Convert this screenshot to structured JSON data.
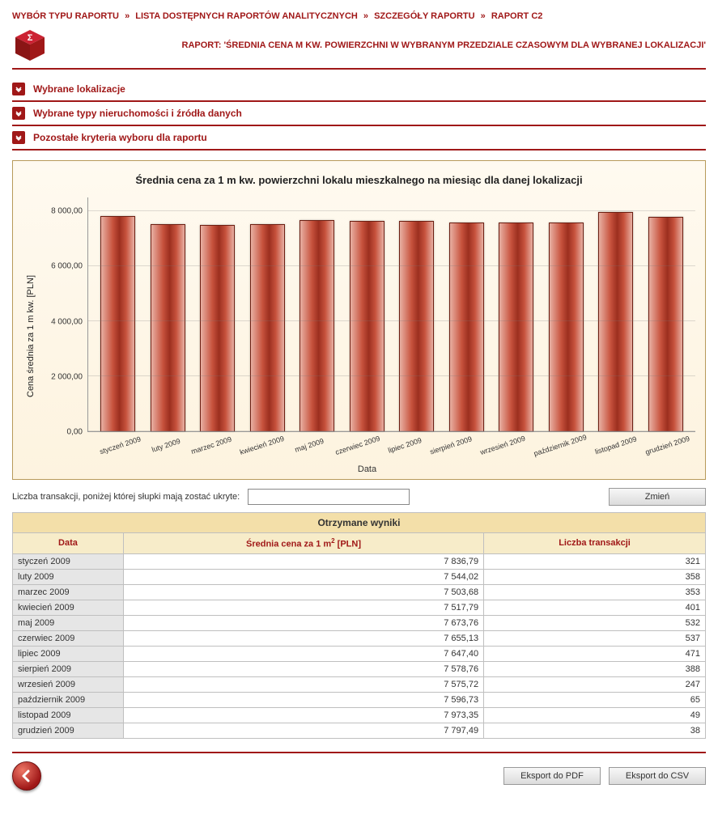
{
  "breadcrumb": {
    "items": [
      "WYBÓR TYPU RAPORTU",
      "LISTA DOSTĘPNYCH RAPORTÓW ANALITYCZNYCH",
      "SZCZEGÓŁY RAPORTU",
      "RAPORT C2"
    ],
    "separator": "»"
  },
  "header": {
    "report_label": "RAPORT: 'ŚREDNIA CENA M KW. POWIERZCHNI W WYBRANYM PRZEDZIALE CZASOWYM DLA WYBRANEJ LOKALIZACJI'"
  },
  "sections": {
    "s1": "Wybrane lokalizacje",
    "s2": "Wybrane typy nieruchomości i źródła danych",
    "s3": "Pozostałe kryteria wyboru dla raportu"
  },
  "chart": {
    "type": "bar",
    "title": "Średnia cena  za 1 m kw. powierzchni lokalu mieszkalnego na miesiąc dla danej lokalizacji",
    "ylabel": "Cena średnia za 1 m kw. [PLN]",
    "xlabel": "Data",
    "ylim": [
      0,
      8500
    ],
    "yticks": [
      {
        "v": 0,
        "label": "0,00"
      },
      {
        "v": 2000,
        "label": "2 000,00"
      },
      {
        "v": 4000,
        "label": "4 000,00"
      },
      {
        "v": 6000,
        "label": "6 000,00"
      },
      {
        "v": 8000,
        "label": "8 000,00"
      }
    ],
    "categories": [
      "styczeń 2009",
      "luty 2009",
      "marzec 2009",
      "kwiecień 2009",
      "maj 2009",
      "czerwiec 2009",
      "lipiec 2009",
      "sierpień 2009",
      "wrzesień 2009",
      "październik 2009",
      "listopad 2009",
      "grudzień 2009"
    ],
    "values": [
      7836.79,
      7544.02,
      7503.68,
      7517.79,
      7673.76,
      7655.13,
      7647.4,
      7578.76,
      7575.72,
      7596.73,
      7973.35,
      7797.49
    ],
    "bar_gradient": [
      "#e8b0a3",
      "#c7523d",
      "#9c2f1f",
      "#c7523d",
      "#e8b0a3"
    ],
    "bar_border": "#6d1f12",
    "background_gradient": [
      "#fffaf0",
      "#fdf3df"
    ],
    "card_border": "#b89a5a",
    "grid_color": "rgba(120,120,120,0.25)",
    "title_fontsize": 13,
    "label_fontsize": 11,
    "tick_fontsize": 10
  },
  "filter": {
    "label": "Liczba transakcji, poniżej której słupki mają zostać ukryte:",
    "value": "",
    "button": "Zmień"
  },
  "table": {
    "title": "Otrzymane wyniki",
    "columns": {
      "date": "Data",
      "avg_price_prefix": "Średnia cena za 1 m",
      "avg_price_suffix": " [PLN]",
      "count": "Liczba transakcji"
    },
    "col_widths": [
      "16%",
      "52%",
      "32%"
    ],
    "rows": [
      {
        "date": "styczeń 2009",
        "price": "7 836,79",
        "count": "321"
      },
      {
        "date": "luty 2009",
        "price": "7 544,02",
        "count": "358"
      },
      {
        "date": "marzec 2009",
        "price": "7 503,68",
        "count": "353"
      },
      {
        "date": "kwiecień 2009",
        "price": "7 517,79",
        "count": "401"
      },
      {
        "date": "maj 2009",
        "price": "7 673,76",
        "count": "532"
      },
      {
        "date": "czerwiec 2009",
        "price": "7 655,13",
        "count": "537"
      },
      {
        "date": "lipiec 2009",
        "price": "7 647,40",
        "count": "471"
      },
      {
        "date": "sierpień 2009",
        "price": "7 578,76",
        "count": "388"
      },
      {
        "date": "wrzesień 2009",
        "price": "7 575,72",
        "count": "247"
      },
      {
        "date": "październik 2009",
        "price": "7 596,73",
        "count": "65"
      },
      {
        "date": "listopad 2009",
        "price": "7 973,35",
        "count": "49"
      },
      {
        "date": "grudzień 2009",
        "price": "7 797,49",
        "count": "38"
      }
    ]
  },
  "footer": {
    "export_pdf": "Eksport do PDF",
    "export_csv": "Eksport do CSV"
  },
  "colors": {
    "brand": "#a01818",
    "header_bg": "#f3dfa9",
    "subhead_bg": "#f7ecc9",
    "date_cell_bg": "#e6e6e6",
    "border": "#bfbfbf"
  }
}
